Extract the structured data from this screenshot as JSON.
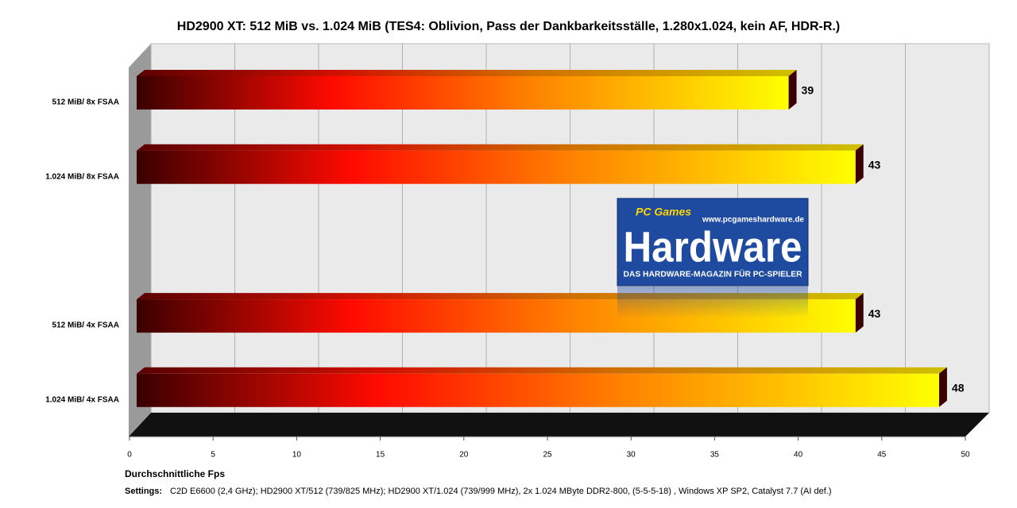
{
  "chart_data": {
    "type": "hbar3d",
    "title": "HD2900 XT: 512 MiB vs. 1.024 MiB (TES4: Oblivion, Pass der Dankbarkeitsställe, 1.280x1.024,  kein AF, HDR-R.)",
    "categories": [
      "512 MiB/ 8x FSAA",
      "1.024 MiB/ 8x FSAA",
      null,
      "512 MiB/ 4x FSAA",
      "1.024 MiB/ 4x FSAA"
    ],
    "values": [
      39,
      43,
      null,
      43,
      48
    ],
    "xlim": [
      0,
      50
    ],
    "xticks": [
      0,
      5,
      10,
      15,
      20,
      25,
      30,
      35,
      40,
      45,
      50
    ],
    "x_label": "Durchschnittliche Fps",
    "grid": true,
    "footnote": {
      "label": "Settings:",
      "text": "C2D E6600 (2,4 GHz); HD2900 XT/512 (739/825 MHz); HD2900 XT/1.024 (739/999 MHz), 2x 1.024 MByte DDR2-800, (5-5-5-18) , Windows XP SP2, Catalyst 7.7 (AI def.)"
    },
    "logo": {
      "brand": "PC Games",
      "url": "www.pcgameshardware.de",
      "name": "Hardware",
      "tagline": "DAS HARDWARE-MAGAZIN FÜR PC-SPIELER"
    }
  }
}
